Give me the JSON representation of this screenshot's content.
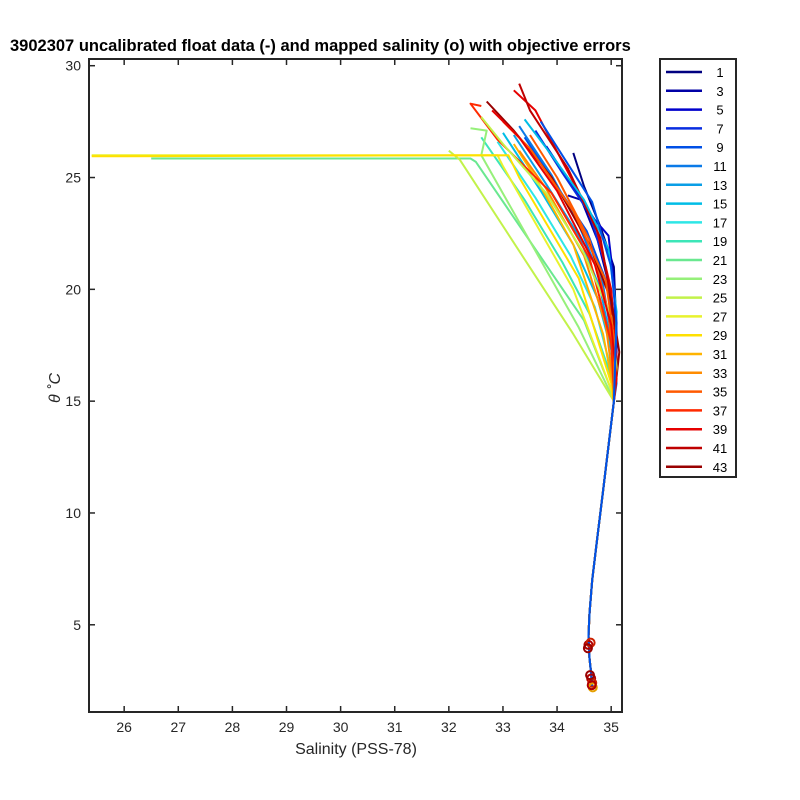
{
  "chart_data": {
    "type": "line",
    "title": "3902307 uncalibrated float data (-) and mapped salinity (o) with objective errors",
    "xlabel": "Salinity (PSS-78)",
    "ylabel": "θ ˚C",
    "xlim": [
      25.35,
      35.2
    ],
    "ylim": [
      1.1,
      30.3
    ],
    "x_ticks": [
      26,
      27,
      28,
      29,
      30,
      31,
      32,
      33,
      34,
      35
    ],
    "y_ticks": [
      5,
      10,
      15,
      20,
      25,
      30
    ],
    "grid": false,
    "legend_position": "outside-right",
    "legend": [
      {
        "label": "1",
        "color": "#000080"
      },
      {
        "label": "3",
        "color": "#0000a6"
      },
      {
        "label": "5",
        "color": "#0000cc"
      },
      {
        "label": "7",
        "color": "#0a2ee0"
      },
      {
        "label": "9",
        "color": "#0050e6"
      },
      {
        "label": "11",
        "color": "#0a7ae8"
      },
      {
        "label": "13",
        "color": "#0a9ee6"
      },
      {
        "label": "15",
        "color": "#00bde6"
      },
      {
        "label": "17",
        "color": "#2ee6e6"
      },
      {
        "label": "19",
        "color": "#3ce6b8"
      },
      {
        "label": "21",
        "color": "#6ae890"
      },
      {
        "label": "23",
        "color": "#96f07a"
      },
      {
        "label": "25",
        "color": "#c2f24a"
      },
      {
        "label": "27",
        "color": "#e8f22e"
      },
      {
        "label": "29",
        "color": "#ffe000"
      },
      {
        "label": "31",
        "color": "#ffb400"
      },
      {
        "label": "33",
        "color": "#ff8c00"
      },
      {
        "label": "35",
        "color": "#ff5a00"
      },
      {
        "label": "37",
        "color": "#ff2a00"
      },
      {
        "label": "39",
        "color": "#e60000"
      },
      {
        "label": "41",
        "color": "#bf0000"
      },
      {
        "label": "43",
        "color": "#990000"
      }
    ],
    "deep_curve": [
      [
        35.05,
        15
      ],
      [
        34.95,
        13
      ],
      [
        34.85,
        11
      ],
      [
        34.75,
        9
      ],
      [
        34.65,
        7
      ],
      [
        34.6,
        5.5
      ],
      [
        34.58,
        4.5
      ],
      [
        34.6,
        3.5
      ],
      [
        34.63,
        2.8
      ],
      [
        34.65,
        2.2
      ]
    ],
    "series": [
      {
        "legend_index": 0,
        "values": [
          [
            34.3,
            26.1
          ],
          [
            34.5,
            24.6
          ],
          [
            34.8,
            22.8
          ],
          [
            35.05,
            21.0
          ],
          [
            35.1,
            18.0
          ],
          [
            35.05,
            16.5
          ]
        ]
      },
      {
        "legend_index": 1,
        "values": [
          [
            34.2,
            24.2
          ],
          [
            34.45,
            24.0
          ],
          [
            34.75,
            22.2
          ],
          [
            35.0,
            19.8
          ],
          [
            35.1,
            17.5
          ]
        ]
      },
      {
        "legend_index": 2,
        "values": [
          [
            33.8,
            26.4
          ],
          [
            34.4,
            24.2
          ],
          [
            34.7,
            23.1
          ],
          [
            34.95,
            22.4
          ],
          [
            35.05,
            20.3
          ],
          [
            35.1,
            17.2
          ]
        ]
      },
      {
        "legend_index": 3,
        "values": [
          [
            33.6,
            27.1
          ],
          [
            34.1,
            25.2
          ],
          [
            34.6,
            23.4
          ],
          [
            34.9,
            21.0
          ],
          [
            35.05,
            18.3
          ],
          [
            35.1,
            16.5
          ]
        ]
      },
      {
        "legend_index": 4,
        "values": [
          [
            33.4,
            26.8
          ],
          [
            34.0,
            24.6
          ],
          [
            34.55,
            22.6
          ],
          [
            34.95,
            20.1
          ],
          [
            35.05,
            17.5
          ]
        ]
      },
      {
        "legend_index": 5,
        "values": [
          [
            33.3,
            27.3
          ],
          [
            33.9,
            25.1
          ],
          [
            34.4,
            22.9
          ],
          [
            34.85,
            20.2
          ],
          [
            35.05,
            17.2
          ],
          [
            35.1,
            15.8
          ]
        ]
      },
      {
        "legend_index": 6,
        "values": [
          [
            33.2,
            26.9
          ],
          [
            33.8,
            24.7
          ],
          [
            34.4,
            22.4
          ],
          [
            34.8,
            20.0
          ],
          [
            35.05,
            17.0
          ]
        ]
      },
      {
        "legend_index": 7,
        "values": [
          [
            33.0,
            27.0
          ],
          [
            33.7,
            24.4
          ],
          [
            34.3,
            22.0
          ],
          [
            34.75,
            19.6
          ],
          [
            35.0,
            17.3
          ],
          [
            35.05,
            15.8
          ]
        ]
      },
      {
        "legend_index": 8,
        "values": [
          [
            32.9,
            26.6
          ],
          [
            33.6,
            24.1
          ],
          [
            34.25,
            21.5
          ],
          [
            34.7,
            19.2
          ],
          [
            35.0,
            16.4
          ]
        ]
      },
      {
        "legend_index": 9,
        "values": [
          [
            32.6,
            26.8
          ],
          [
            33.4,
            24.0
          ],
          [
            34.1,
            21.2
          ],
          [
            34.6,
            18.9
          ],
          [
            35.0,
            16.1
          ]
        ]
      },
      {
        "legend_index": 10,
        "values": [
          [
            26.5,
            25.85
          ],
          [
            32.4,
            25.85
          ],
          [
            32.5,
            25.7
          ],
          [
            34.5,
            18.6
          ],
          [
            35.0,
            15.5
          ]
        ]
      },
      {
        "legend_index": 11,
        "values": [
          [
            32.4,
            27.2
          ],
          [
            32.7,
            27.1
          ],
          [
            32.6,
            26.0
          ],
          [
            34.4,
            18.3
          ],
          [
            35.0,
            15.3
          ]
        ]
      },
      {
        "legend_index": 12,
        "values": [
          [
            32.0,
            26.2
          ],
          [
            32.2,
            25.8
          ],
          [
            34.3,
            18.0
          ],
          [
            35.0,
            15.2
          ]
        ]
      },
      {
        "legend_index": 13,
        "values": [
          [
            25.4,
            26.0
          ],
          [
            32.9,
            26.0
          ],
          [
            33.0,
            25.5
          ],
          [
            34.3,
            20.0
          ],
          [
            35.0,
            15.5
          ]
        ]
      },
      {
        "legend_index": 14,
        "values": [
          [
            25.4,
            25.95
          ],
          [
            33.1,
            26.0
          ],
          [
            33.3,
            25.0
          ],
          [
            34.4,
            20.5
          ],
          [
            35.0,
            15.8
          ]
        ]
      },
      {
        "legend_index": 15,
        "values": [
          [
            33.2,
            26.5
          ],
          [
            33.6,
            25.0
          ],
          [
            34.3,
            22.0
          ],
          [
            34.85,
            18.0
          ],
          [
            35.05,
            15.4
          ]
        ]
      },
      {
        "legend_index": 16,
        "values": [
          [
            33.3,
            26.2
          ],
          [
            33.8,
            24.5
          ],
          [
            34.5,
            21.5
          ],
          [
            34.9,
            18.4
          ],
          [
            35.05,
            15.6
          ]
        ]
      },
      {
        "legend_index": 17,
        "values": [
          [
            33.5,
            26.9
          ],
          [
            34.0,
            25.0
          ],
          [
            34.6,
            22.2
          ],
          [
            34.95,
            19.0
          ],
          [
            35.05,
            16.1
          ]
        ]
      },
      {
        "legend_index": 18,
        "values": [
          [
            32.6,
            28.2
          ],
          [
            32.4,
            28.3
          ],
          [
            32.9,
            26.7
          ],
          [
            33.9,
            24.3
          ],
          [
            34.6,
            21.4
          ],
          [
            35.0,
            17.6
          ],
          [
            35.05,
            15.5
          ]
        ]
      },
      {
        "legend_index": 19,
        "values": [
          [
            33.2,
            28.9
          ],
          [
            33.6,
            28.0
          ],
          [
            34.1,
            25.7
          ],
          [
            34.7,
            23.0
          ],
          [
            35.0,
            20.0
          ],
          [
            35.1,
            17.0
          ]
        ]
      },
      {
        "legend_index": 20,
        "values": [
          [
            33.3,
            29.2
          ],
          [
            33.5,
            28.0
          ],
          [
            34.2,
            25.4
          ],
          [
            34.8,
            22.3
          ],
          [
            35.0,
            19.5
          ],
          [
            35.05,
            17.0
          ]
        ]
      },
      {
        "legend_index": 21,
        "values": [
          [
            32.7,
            28.4
          ],
          [
            33.2,
            27.1
          ],
          [
            33.9,
            25.0
          ],
          [
            34.6,
            22.0
          ],
          [
            35.0,
            19.5
          ],
          [
            35.15,
            17.2
          ]
        ]
      },
      {
        "legend_index": 12,
        "values": [
          [
            32.6,
            27.7
          ],
          [
            33.0,
            26.5
          ],
          [
            33.8,
            24.3
          ],
          [
            34.5,
            21.6
          ],
          [
            35.0,
            18.8
          ],
          [
            35.1,
            16.5
          ]
        ]
      },
      {
        "legend_index": 17,
        "values": [
          [
            33.0,
            27.5
          ],
          [
            33.5,
            26.3
          ],
          [
            34.3,
            23.5
          ],
          [
            34.9,
            20.4
          ],
          [
            35.05,
            17.8
          ]
        ]
      },
      {
        "legend_index": 19,
        "values": [
          [
            32.8,
            28.0
          ],
          [
            33.3,
            26.8
          ],
          [
            34.0,
            24.4
          ],
          [
            34.7,
            21.1
          ],
          [
            35.0,
            18.4
          ],
          [
            35.1,
            16.0
          ]
        ]
      },
      {
        "legend_index": 7,
        "values": [
          [
            33.4,
            27.6
          ],
          [
            33.9,
            26.0
          ],
          [
            34.5,
            24.0
          ],
          [
            34.95,
            21.8
          ],
          [
            35.1,
            19.0
          ]
        ]
      },
      {
        "legend_index": 4,
        "values": [
          [
            33.7,
            27.5
          ],
          [
            34.2,
            25.6
          ],
          [
            34.65,
            23.9
          ],
          [
            35.0,
            21.0
          ],
          [
            35.1,
            18.5
          ]
        ]
      }
    ],
    "mapped_points": [
      {
        "x": 34.58,
        "y": 4.1,
        "color": "#b00000"
      },
      {
        "x": 34.62,
        "y": 4.2,
        "color": "#cc2000"
      },
      {
        "x": 34.57,
        "y": 3.95,
        "color": "#990000"
      },
      {
        "x": 34.63,
        "y": 2.6,
        "color": "#b00000"
      },
      {
        "x": 34.65,
        "y": 2.4,
        "color": "#cc2000"
      },
      {
        "x": 34.61,
        "y": 2.75,
        "color": "#990000"
      },
      {
        "x": 34.66,
        "y": 2.2,
        "color": "#e6a000"
      },
      {
        "x": 34.64,
        "y": 2.3,
        "color": "#b00000"
      }
    ]
  }
}
